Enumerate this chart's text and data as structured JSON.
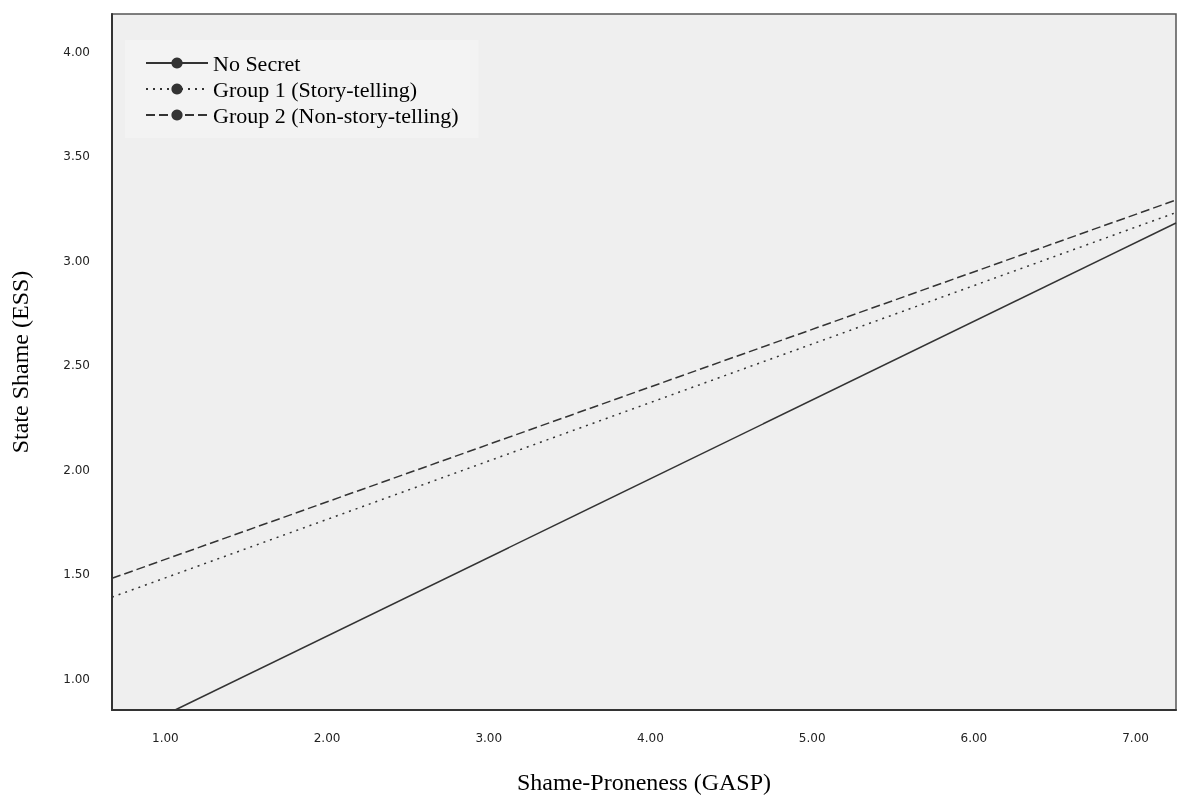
{
  "chart_data": {
    "type": "line",
    "xlabel": "Shame-Proneness (GASP)",
    "ylabel": "State Shame (ESS)",
    "xlim": [
      0.67,
      7.25
    ],
    "ylim": [
      0.85,
      4.18
    ],
    "xticks": [
      {
        "value": 1,
        "label": "1.00"
      },
      {
        "value": 2,
        "label": "2.00"
      },
      {
        "value": 3,
        "label": "3.00"
      },
      {
        "value": 4,
        "label": "4.00"
      },
      {
        "value": 5,
        "label": "5.00"
      },
      {
        "value": 6,
        "label": "6.00"
      },
      {
        "value": 7,
        "label": "7.00"
      }
    ],
    "yticks": [
      {
        "value": 1,
        "label": "1.00"
      },
      {
        "value": 1.5,
        "label": "1.50"
      },
      {
        "value": 2,
        "label": "2.00"
      },
      {
        "value": 2.5,
        "label": "2.50"
      },
      {
        "value": 3,
        "label": "3.00"
      },
      {
        "value": 3.5,
        "label": "3.50"
      },
      {
        "value": 4,
        "label": "4.00"
      }
    ],
    "grid": false,
    "legend": "top left",
    "marker": "none",
    "series": [
      {
        "name": "No Secret",
        "color": "#333333",
        "line_style": "solid",
        "x": [
          1.06,
          7.25
        ],
        "values": [
          0.85,
          3.18
        ]
      },
      {
        "name": "Group 1 (Story-telling)",
        "color": "#333333",
        "line_style": "dotted",
        "x": [
          0.67,
          7.25
        ],
        "values": [
          1.39,
          3.23
        ]
      },
      {
        "name": "Group 2 (Non-story-telling)",
        "color": "#333333",
        "line_style": "dashed",
        "x": [
          0.67,
          7.25
        ],
        "values": [
          1.48,
          3.29
        ]
      }
    ]
  }
}
